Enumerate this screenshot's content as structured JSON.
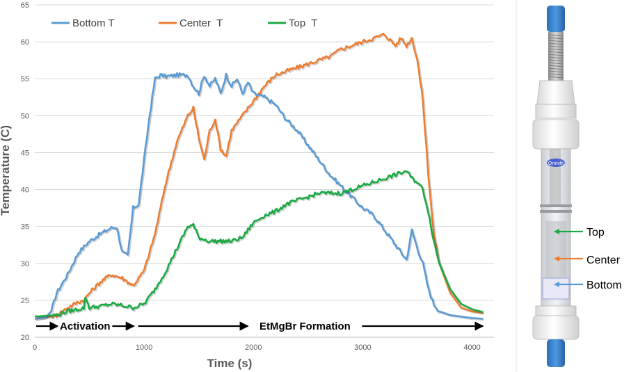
{
  "chart_data": {
    "type": "line",
    "title": "",
    "xlabel": "Time (s)",
    "ylabel": "Temperature (C)",
    "xlim": [
      0,
      4200
    ],
    "ylim": [
      20,
      65
    ],
    "xticks": [
      0,
      1000,
      2000,
      3000,
      4000
    ],
    "yticks": [
      20,
      25,
      30,
      35,
      40,
      45,
      50,
      55,
      60,
      65
    ],
    "grid": "horizontal",
    "legend_position": "top-left",
    "series": [
      {
        "name": "Bottom T",
        "color": "#5b9bd5",
        "x": [
          0,
          100,
          150,
          200,
          300,
          400,
          500,
          600,
          700,
          750,
          800,
          850,
          900,
          950,
          1000,
          1050,
          1100,
          1150,
          1200,
          1300,
          1400,
          1450,
          1500,
          1550,
          1600,
          1650,
          1700,
          1750,
          1800,
          1850,
          1900,
          1950,
          2000,
          2100,
          2200,
          2300,
          2400,
          2500,
          2600,
          2700,
          2800,
          2900,
          3000,
          3100,
          3200,
          3300,
          3400,
          3450,
          3500,
          3550,
          3600,
          3650,
          3700,
          3800,
          3900,
          4000,
          4100
        ],
        "y": [
          22.5,
          22.7,
          23.5,
          26,
          28.5,
          31.5,
          33,
          34,
          34.8,
          34.9,
          31.5,
          31,
          37.5,
          38,
          44,
          50,
          55,
          55.5,
          55.3,
          55.5,
          55.5,
          54,
          53,
          55.5,
          54,
          55,
          53,
          55.5,
          54,
          55,
          53,
          54.5,
          53,
          52.5,
          51.5,
          49.5,
          48,
          46,
          44,
          42,
          40.5,
          39,
          37.5,
          36.5,
          34.5,
          32.5,
          30.5,
          34.5,
          32,
          30,
          26.5,
          24.5,
          23.5,
          23,
          22.8,
          22.6,
          22.5
        ]
      },
      {
        "name": "Center  T",
        "color": "#ed7d31",
        "x": [
          0,
          100,
          200,
          300,
          400,
          450,
          500,
          600,
          700,
          800,
          850,
          900,
          1000,
          1100,
          1200,
          1300,
          1400,
          1450,
          1500,
          1550,
          1600,
          1650,
          1700,
          1750,
          1800,
          1900,
          2000,
          2100,
          2200,
          2300,
          2400,
          2500,
          2600,
          2700,
          2800,
          2900,
          3000,
          3100,
          3200,
          3300,
          3350,
          3400,
          3450,
          3500,
          3550,
          3600,
          3650,
          3700,
          3800,
          3900,
          4000,
          4100
        ],
        "y": [
          22.5,
          22.7,
          23,
          24,
          24.8,
          25,
          26,
          27.5,
          28.5,
          28,
          27.5,
          27,
          29,
          34,
          41,
          46.5,
          50,
          51,
          47,
          44,
          48,
          49.5,
          45.5,
          44.5,
          48,
          50,
          52,
          54,
          55.5,
          56,
          56.5,
          57,
          57.5,
          58,
          59,
          59.5,
          60,
          60.5,
          61,
          59.5,
          60.5,
          59.5,
          60.5,
          57.5,
          52,
          42,
          34,
          30,
          26,
          24,
          23.5,
          23.3
        ]
      },
      {
        "name": "Top  T",
        "color": "#1aaa44",
        "x": [
          0,
          100,
          200,
          300,
          400,
          450,
          460,
          500,
          600,
          700,
          800,
          900,
          1000,
          1100,
          1200,
          1300,
          1400,
          1450,
          1500,
          1600,
          1700,
          1800,
          1900,
          2000,
          2100,
          2200,
          2300,
          2400,
          2500,
          2600,
          2700,
          2800,
          2900,
          3000,
          3100,
          3200,
          3300,
          3400,
          3450,
          3500,
          3550,
          3600,
          3650,
          3700,
          3800,
          3900,
          4000,
          4100
        ],
        "y": [
          22.8,
          22.9,
          23,
          23.5,
          23.8,
          24,
          25.5,
          24,
          24.2,
          24.5,
          24.3,
          24,
          24.5,
          26.5,
          29,
          32,
          35,
          35.2,
          33.5,
          33,
          33,
          33,
          33.5,
          35.5,
          36.5,
          37,
          38,
          38.5,
          39,
          39.5,
          39.5,
          39.5,
          40,
          40.5,
          41,
          41.5,
          42,
          42.5,
          41.5,
          41,
          40,
          37,
          33,
          30,
          26.5,
          24.5,
          23.8,
          23.4
        ]
      }
    ],
    "annotations": {
      "activation_label": "Activation",
      "activation_range": [
        0,
        920
      ],
      "formation_label": "EtMgBr Formation",
      "formation_range": [
        920,
        4100
      ]
    }
  },
  "reactor_callouts": {
    "top": "Top",
    "center": "Center",
    "bottom": "Bottom",
    "tube_badge": "Omnifit"
  }
}
